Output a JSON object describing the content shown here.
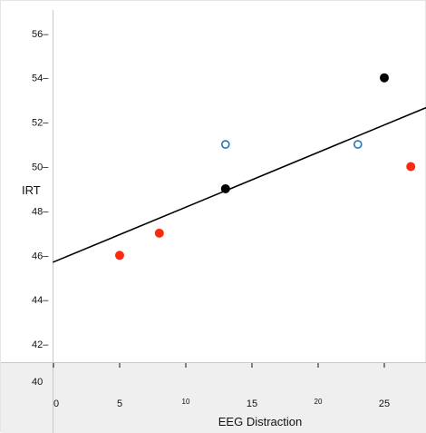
{
  "chart_data": {
    "type": "scatter",
    "xlabel": "EEG Distraction",
    "ylabel": "IRT",
    "xlim": [
      0,
      28
    ],
    "ylim": [
      40,
      56.8
    ],
    "x_ticks": [
      {
        "value": 0,
        "label": "0",
        "size": "normal"
      },
      {
        "value": 5,
        "label": "5",
        "size": "normal"
      },
      {
        "value": 10,
        "label": "10",
        "size": "small"
      },
      {
        "value": 15,
        "label": "15",
        "size": "normal"
      },
      {
        "value": 20,
        "label": "20",
        "size": "small"
      },
      {
        "value": 25,
        "label": "25",
        "size": "normal"
      }
    ],
    "y_ticks": [
      {
        "value": 40,
        "label": "40"
      },
      {
        "value": 42,
        "label": "42–"
      },
      {
        "value": 44,
        "label": "44–"
      },
      {
        "value": 46,
        "label": "46–"
      },
      {
        "value": 48,
        "label": "48–"
      },
      {
        "value": 50,
        "label": "50–"
      },
      {
        "value": 52,
        "label": "52–"
      },
      {
        "value": 54,
        "label": "54–"
      },
      {
        "value": 56,
        "label": "56–"
      }
    ],
    "grid": false,
    "legend": "none",
    "points": [
      {
        "x": 5,
        "y": 46,
        "style": "red-filled"
      },
      {
        "x": 8,
        "y": 47,
        "style": "red-filled"
      },
      {
        "x": 13,
        "y": 51,
        "style": "blue-open"
      },
      {
        "x": 13,
        "y": 49,
        "style": "black-filled"
      },
      {
        "x": 23,
        "y": 51,
        "style": "blue-open"
      },
      {
        "x": 25,
        "y": 54,
        "style": "black-filled"
      },
      {
        "x": 27,
        "y": 50,
        "style": "red-filled"
      }
    ],
    "trend_line": {
      "intercept": 45.7,
      "slope": 0.247
    },
    "colors": {
      "red-filled": "#ff2a0e",
      "black-filled": "#000000",
      "blue-open": "#1f77b4",
      "axis": "#c8c8c8",
      "x_axis_band": "#efefef",
      "trend": "#000000"
    }
  }
}
